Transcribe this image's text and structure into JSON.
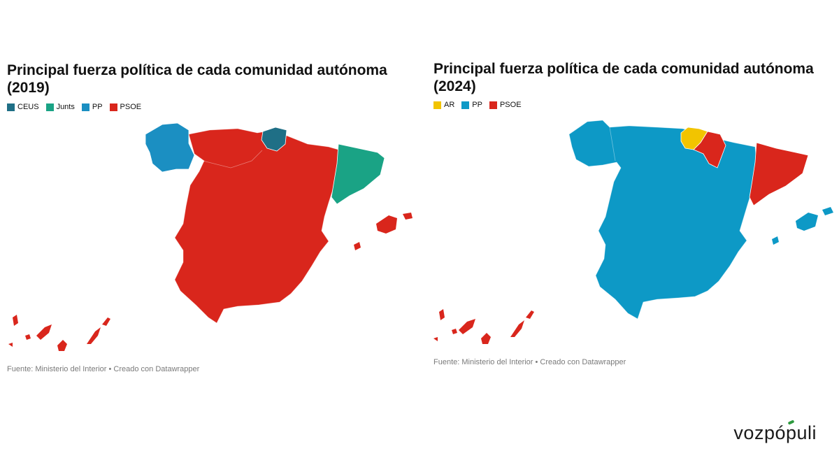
{
  "left": {
    "title": "Principal fuerza política de cada comunidad autónoma (2019)",
    "legend": [
      {
        "label": "CEUS",
        "color": "#1f6f86"
      },
      {
        "label": "Junts",
        "color": "#1aa385"
      },
      {
        "label": "PP",
        "color": "#1b8fc2"
      },
      {
        "label": "PSOE",
        "color": "#d9261c"
      }
    ],
    "source": "Fuente: Ministerio del Interior • Creado con Datawrapper",
    "regions": {
      "galicia": "PP",
      "basque_country": "CEUS",
      "catalonia": "Junts",
      "rest_of_spain": "PSOE",
      "balearic_islands": "PSOE",
      "canary_islands": "PSOE"
    }
  },
  "right": {
    "title": "Principal fuerza política de cada comunidad autónoma (2024)",
    "legend": [
      {
        "label": "AR",
        "color": "#f2c400"
      },
      {
        "label": "PP",
        "color": "#0d99c6"
      },
      {
        "label": "PSOE",
        "color": "#d9261c"
      }
    ],
    "source": "Fuente: Ministerio del Interior • Creado con Datawrapper",
    "regions": {
      "basque_country": "AR",
      "navarre": "PSOE",
      "catalonia": "PSOE",
      "canary_islands": "PSOE",
      "rest_of_spain": "PP",
      "balearic_islands": "PP"
    }
  },
  "brand": "vozpópuli"
}
